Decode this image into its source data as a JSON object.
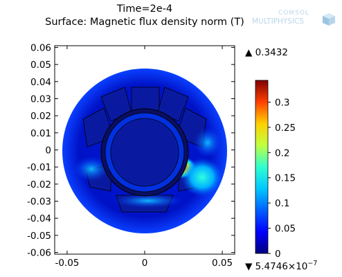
{
  "chart_data": {
    "type": "heatmap",
    "title_line1": "Time=2e-4",
    "title_line2": "Surface: Magnetic flux density norm (T)",
    "xlim": [
      -0.058,
      0.058
    ],
    "ylim": [
      -0.061,
      0.061
    ],
    "x_ticks": [
      {
        "value": -0.05,
        "label": "-0.05"
      },
      {
        "value": 0,
        "label": "0"
      },
      {
        "value": 0.05,
        "label": "0.05"
      }
    ],
    "y_ticks": [
      {
        "value": 0.06,
        "label": "0.06"
      },
      {
        "value": 0.05,
        "label": "0.05"
      },
      {
        "value": 0.04,
        "label": "0.04"
      },
      {
        "value": 0.03,
        "label": "0.03"
      },
      {
        "value": 0.02,
        "label": "0.02"
      },
      {
        "value": 0.01,
        "label": "0.01"
      },
      {
        "value": 0,
        "label": "0"
      },
      {
        "value": -0.01,
        "label": "-0.01"
      },
      {
        "value": -0.02,
        "label": "-0.02"
      },
      {
        "value": -0.03,
        "label": "-0.03"
      },
      {
        "value": -0.04,
        "label": "-0.04"
      },
      {
        "value": -0.05,
        "label": "-0.05"
      },
      {
        "value": -0.06,
        "label": "-0.06"
      }
    ],
    "colorbar": {
      "max_label": "▲ 0.3432",
      "min_label": "▼ 5.4746×10",
      "min_exponent": "−7",
      "range": [
        0,
        0.3432
      ],
      "ticks": [
        {
          "value": 0.3,
          "label": "0.3"
        },
        {
          "value": 0.25,
          "label": "0.25"
        },
        {
          "value": 0.2,
          "label": "0.2"
        },
        {
          "value": 0.15,
          "label": "0.15"
        },
        {
          "value": 0.1,
          "label": "0.1"
        },
        {
          "value": 0.05,
          "label": "0.05"
        },
        {
          "value": 0,
          "label": "0"
        }
      ]
    },
    "colormap": [
      "#00007f",
      "#0000ff",
      "#00a0ff",
      "#00ffff",
      "#7fff7f",
      "#ffff00",
      "#ff7f00",
      "#ff0000",
      "#7f0000"
    ]
  },
  "logo": {
    "line1": "COMSOL",
    "line2": "MULTIPHYSICS"
  }
}
